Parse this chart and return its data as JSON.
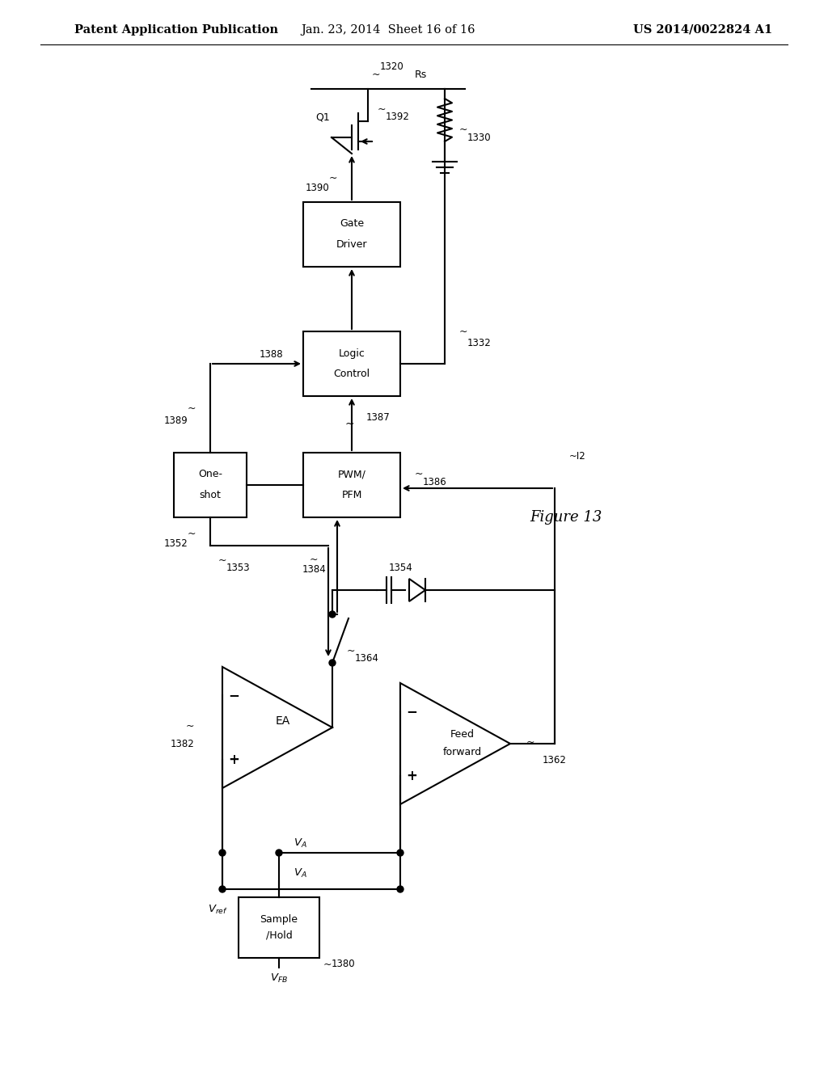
{
  "title_left": "Patent Application Publication",
  "title_mid": "Jan. 23, 2014  Sheet 16 of 16",
  "title_right": "US 2014/0022824 A1",
  "figure_label": "Figure 13",
  "bg_color": "#ffffff",
  "line_color": "#000000",
  "text_color": "#000000",
  "font_size_header": 10.5,
  "font_size_label": 9,
  "font_size_small": 8.5
}
